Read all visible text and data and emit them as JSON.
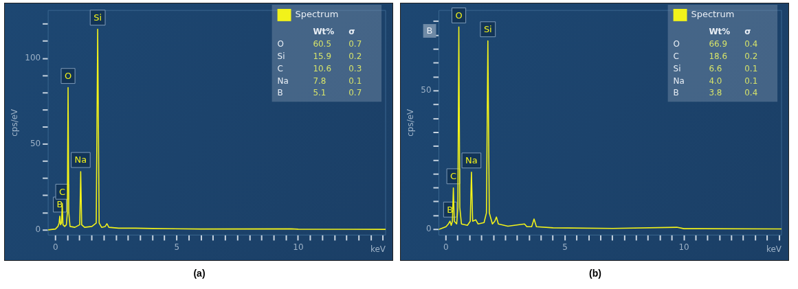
{
  "chart_data": [
    {
      "type": "line",
      "title": "(a)",
      "xlabel": "keV",
      "ylabel": "cps/eV",
      "xlim": [
        -0.3,
        13.6
      ],
      "ylim": [
        -3,
        128
      ],
      "xticks": [
        0,
        {
          "value": 0.5,
          "label": null
        },
        {
          "value": 1,
          "label": null
        },
        {
          "value": 1.5,
          "label": null
        },
        {
          "value": 2,
          "label": null
        },
        {
          "value": 2.5,
          "label": null
        },
        {
          "value": 3,
          "label": null
        },
        {
          "value": 3.5,
          "label": null
        },
        {
          "value": 4,
          "label": null
        },
        {
          "value": 4.5,
          "label": null
        },
        5,
        {
          "value": 5.5,
          "label": null
        },
        {
          "value": 6,
          "label": null
        },
        {
          "value": 6.5,
          "label": null
        },
        {
          "value": 7,
          "label": null
        },
        {
          "value": 7.5,
          "label": null
        },
        {
          "value": 8,
          "label": null
        },
        {
          "value": 8.5,
          "label": null
        },
        {
          "value": 9,
          "label": null
        },
        {
          "value": 9.5,
          "label": null
        },
        10,
        {
          "value": 10.5,
          "label": null
        },
        {
          "value": 11,
          "label": null
        },
        {
          "value": 11.5,
          "label": null
        },
        {
          "value": 12,
          "label": null
        },
        {
          "value": 12.5,
          "label": null
        },
        {
          "value": 13,
          "label": null
        },
        {
          "value": 13.5,
          "label": null
        }
      ],
      "yticks": [
        0,
        {
          "value": 10,
          "label": null
        },
        {
          "value": 20,
          "label": null
        },
        {
          "value": 30,
          "label": null
        },
        {
          "value": 40,
          "label": null
        },
        50,
        {
          "value": 60,
          "label": null
        },
        {
          "value": 70,
          "label": null
        },
        {
          "value": 80,
          "label": null
        },
        {
          "value": 90,
          "label": null
        },
        100,
        {
          "value": 110,
          "label": null
        },
        {
          "value": 120,
          "label": null
        }
      ],
      "marker": "none",
      "line_style": "solid",
      "legend": "top right",
      "series": [
        {
          "name": "Spectrum",
          "color": "#f2f21a",
          "x": [
            -0.3,
            0,
            0.1,
            0.15,
            0.18,
            0.21,
            0.25,
            0.28,
            0.31,
            0.38,
            0.45,
            0.49,
            0.52,
            0.55,
            0.6,
            0.8,
            1.0,
            1.04,
            1.08,
            1.2,
            1.5,
            1.68,
            1.74,
            1.8,
            1.9,
            2.05,
            2.12,
            2.2,
            2.6,
            3.3,
            4,
            6,
            9.7,
            10,
            13.6
          ],
          "values": [
            0,
            0.5,
            2,
            4,
            8,
            3,
            4,
            15.5,
            3,
            2,
            3,
            10,
            83,
            10,
            2,
            1.5,
            3,
            34,
            3,
            1.5,
            2,
            4,
            117,
            4,
            1.5,
            2,
            3.6,
            1.5,
            1,
            1,
            0.8,
            0.5,
            0.6,
            0.4,
            0.3
          ]
        }
      ],
      "annotations": [
        "Wt%",
        "σ",
        "O",
        "60.5",
        "0.7",
        "Si",
        "15.9",
        "0.2",
        "C",
        "10.6",
        "0.3",
        "Na",
        "7.8",
        "0.1",
        "B",
        "5.1",
        "0.7",
        {
          "text": "B",
          "x": 0.18,
          "y": 8
        },
        {
          "text": "C",
          "x": 0.28,
          "y": 15.5
        },
        {
          "text": "O",
          "x": 0.52,
          "y": 83
        },
        {
          "text": "Na",
          "x": 1.04,
          "y": 34
        },
        {
          "text": "Si",
          "x": 1.74,
          "y": 117
        }
      ]
    },
    {
      "type": "line",
      "title": "(b)",
      "xlabel": "keV",
      "ylabel": "cps/eV",
      "xlim": [
        -0.3,
        14.1
      ],
      "ylim": [
        -2,
        79
      ],
      "xticks": [
        0,
        {
          "value": 0.5,
          "label": null
        },
        {
          "value": 1,
          "label": null
        },
        {
          "value": 1.5,
          "label": null
        },
        {
          "value": 2,
          "label": null
        },
        {
          "value": 2.5,
          "label": null
        },
        {
          "value": 3,
          "label": null
        },
        {
          "value": 3.5,
          "label": null
        },
        {
          "value": 4,
          "label": null
        },
        {
          "value": 4.5,
          "label": null
        },
        5,
        {
          "value": 5.5,
          "label": null
        },
        {
          "value": 6,
          "label": null
        },
        {
          "value": 6.5,
          "label": null
        },
        {
          "value": 7,
          "label": null
        },
        {
          "value": 7.5,
          "label": null
        },
        {
          "value": 8,
          "label": null
        },
        {
          "value": 8.5,
          "label": null
        },
        {
          "value": 9,
          "label": null
        },
        {
          "value": 9.5,
          "label": null
        },
        10,
        {
          "value": 10.5,
          "label": null
        },
        {
          "value": 11,
          "label": null
        },
        {
          "value": 11.5,
          "label": null
        },
        {
          "value": 12,
          "label": null
        },
        {
          "value": 12.5,
          "label": null
        },
        {
          "value": 13,
          "label": null
        },
        {
          "value": 13.5,
          "label": null
        },
        {
          "value": 14,
          "label": null
        }
      ],
      "yticks": [
        0,
        {
          "value": 5,
          "label": null
        },
        {
          "value": 10,
          "label": null
        },
        {
          "value": 15,
          "label": null
        },
        {
          "value": 20,
          "label": null
        },
        {
          "value": 25,
          "label": null
        },
        {
          "value": 30,
          "label": null
        },
        {
          "value": 35,
          "label": null
        },
        {
          "value": 40,
          "label": null
        },
        {
          "value": 45,
          "label": null
        },
        50,
        {
          "value": 55,
          "label": null
        },
        {
          "value": 60,
          "label": null
        },
        {
          "value": 65,
          "label": null
        },
        {
          "value": 70,
          "label": null
        },
        {
          "value": 75,
          "label": null
        }
      ],
      "marker": "none",
      "line_style": "solid",
      "legend": "top right",
      "series": [
        {
          "name": "Spectrum",
          "color": "#f2f21a",
          "x": [
            -0.3,
            0,
            0.1,
            0.17,
            0.22,
            0.27,
            0.31,
            0.35,
            0.45,
            0.5,
            0.54,
            0.58,
            0.65,
            0.9,
            1.02,
            1.07,
            1.12,
            1.25,
            1.35,
            1.6,
            1.7,
            1.76,
            1.82,
            1.95,
            2.05,
            2.12,
            2.2,
            2.6,
            3.3,
            3.4,
            3.6,
            3.7,
            3.8,
            4.5,
            7,
            9.7,
            10,
            14.1
          ],
          "values": [
            0,
            1,
            2,
            3,
            1.5,
            3,
            15,
            3,
            2,
            8,
            73,
            8,
            2,
            1.5,
            3,
            20.7,
            3,
            3.5,
            2,
            2.5,
            6,
            68,
            6,
            2,
            3,
            4.5,
            2,
            1.2,
            2,
            1,
            1,
            3.8,
            1,
            0.6,
            0.4,
            0.8,
            0.3,
            0.2
          ]
        }
      ],
      "annotations": [
        "Wt%",
        "σ",
        "O",
        "66.9",
        "0.4",
        "C",
        "18.6",
        "0.2",
        "Si",
        "6.6",
        "0.1",
        "Na",
        "4.0",
        "0.1",
        "B",
        "3.8",
        "0.4",
        {
          "text": "B",
          "x": 0.17,
          "y": 3
        },
        {
          "text": "C",
          "x": 0.31,
          "y": 15
        },
        {
          "text": "O",
          "x": 0.54,
          "y": 73
        },
        {
          "text": "Na",
          "x": 1.07,
          "y": 20.7
        },
        {
          "text": "Si",
          "x": 1.76,
          "y": 68
        },
        "B"
      ]
    }
  ]
}
